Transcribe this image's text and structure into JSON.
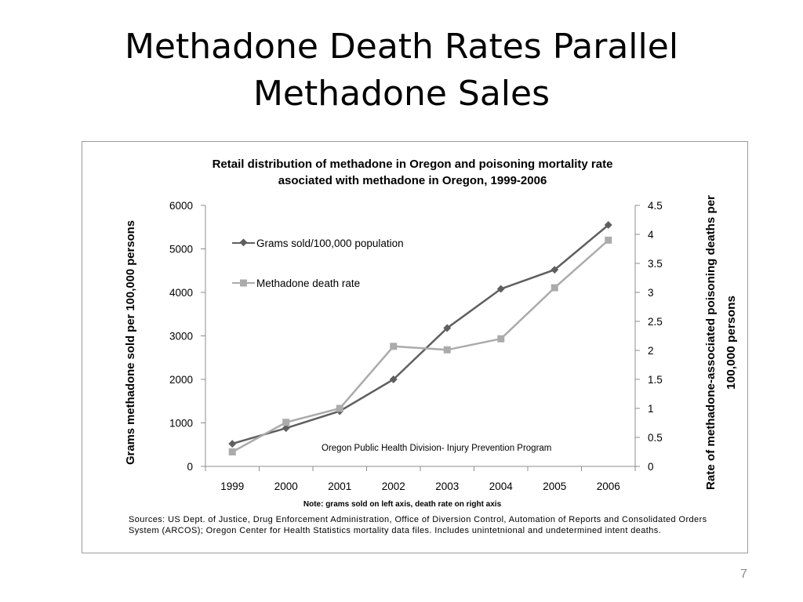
{
  "slide": {
    "title_line1": "Methadone Death Rates Parallel",
    "title_line2": "Methadone Sales",
    "sources": "Sources: US Dept. of Justice, Drug Enforcement Administration, Office of Diversion Control, Automation of Reports and Consolidated Orders System (ARCOS);  Oregon Center for Health Statistics mortality data files. Includes unintetnional and undetermined intent deaths.",
    "slide_number": "7"
  },
  "chart_data": {
    "type": "line",
    "title_line1": "Retail distribution  of methadone  in Oregon and poisoning  mortality rate",
    "title_line2": "asociated with methadone  in Oregon, 1999-2006",
    "categories": [
      "1999",
      "2000",
      "2001",
      "2002",
      "2003",
      "2004",
      "2005",
      "2006"
    ],
    "ylabel_left": "Grams methadone  sold  per 100,000 persons",
    "ylabel_right_line1": "Rate of methadone-associated  poisoning  deaths  per",
    "ylabel_right_line2": "100,000 persons",
    "ylim_left": [
      0,
      6000
    ],
    "ylim_right": [
      0,
      4.5
    ],
    "left_ticks": [
      "0",
      "1000",
      "2000",
      "3000",
      "4000",
      "5000",
      "6000"
    ],
    "right_ticks": [
      "0",
      "0.5",
      "1",
      "1.5",
      "2",
      "2.5",
      "3",
      "3.5",
      "4",
      "4.5"
    ],
    "note": "Note: grams sold on left axis, death rate on right axis",
    "annotation": "Oregon Public Health Division- Injury  Prevention Program",
    "grid": false,
    "legend_position": "upper-left",
    "series": [
      {
        "name": "Grams sold/100,000 population",
        "axis": "left",
        "marker": "diamond",
        "color": "#5f5f5f",
        "values": [
          520,
          880,
          1270,
          2000,
          3180,
          4080,
          4520,
          5550
        ]
      },
      {
        "name": "Methadone death rate",
        "axis": "right",
        "marker": "square",
        "color": "#ababab",
        "values": [
          0.25,
          0.76,
          1.0,
          2.07,
          2.01,
          2.2,
          3.08,
          3.9
        ]
      }
    ]
  }
}
